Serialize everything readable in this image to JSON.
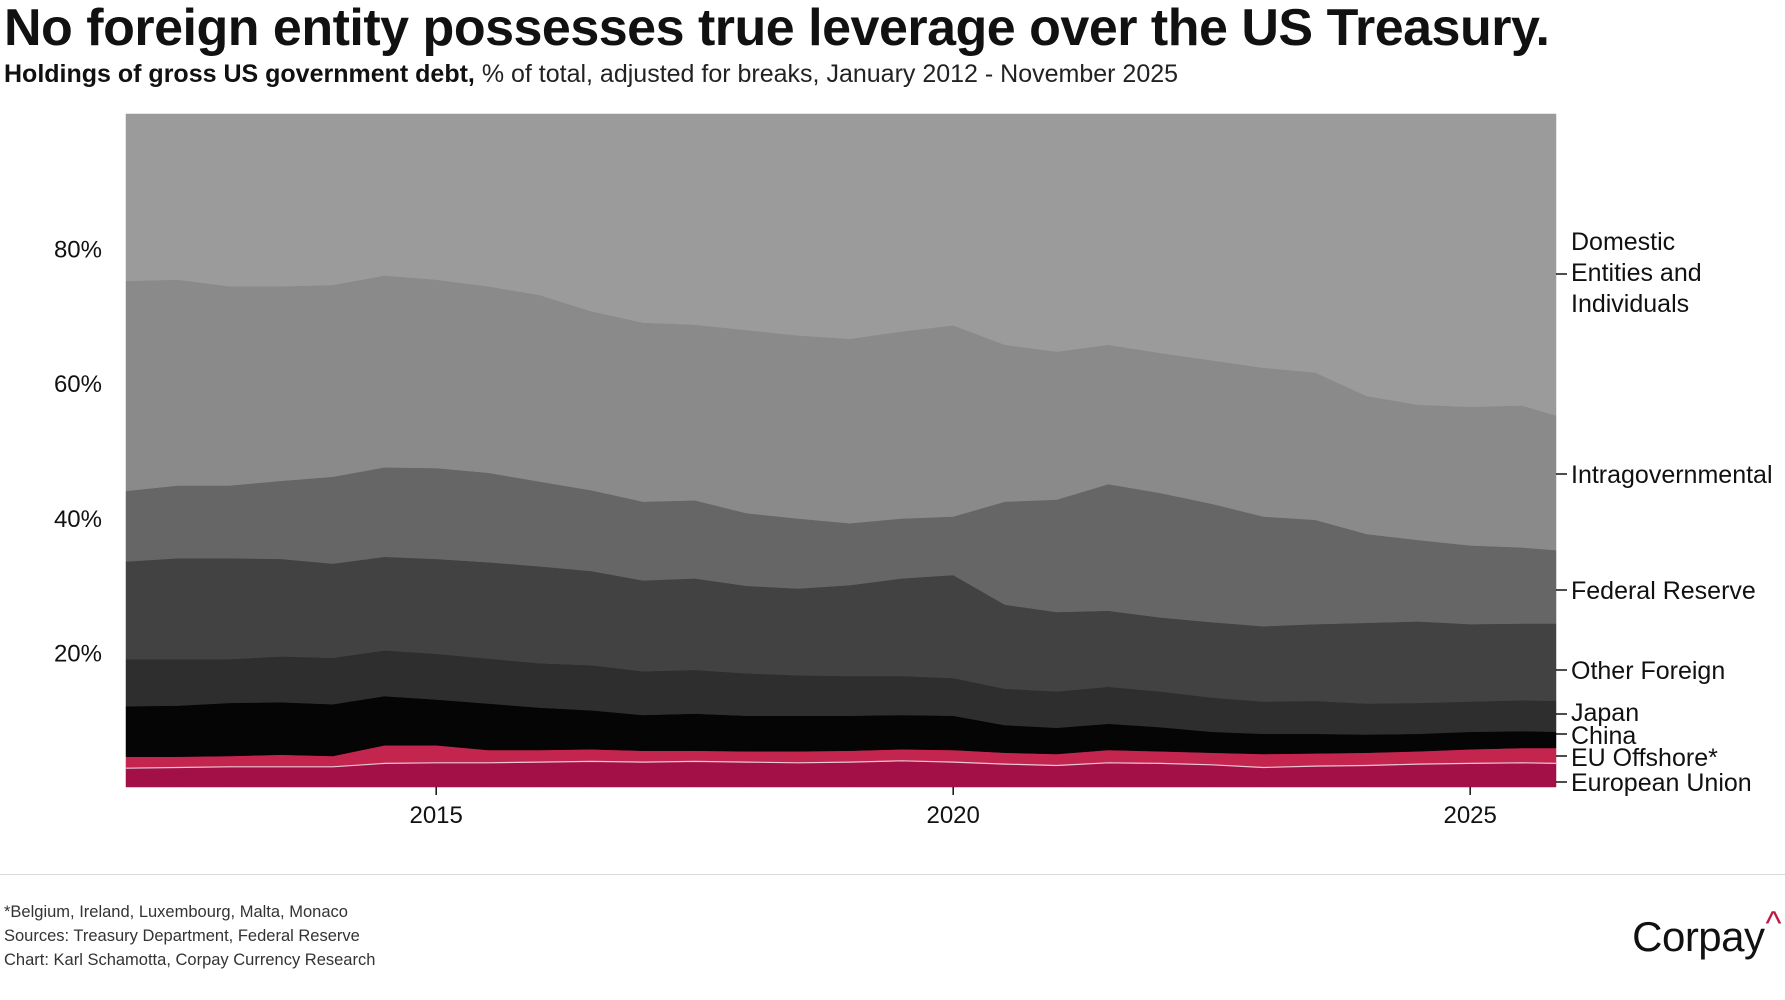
{
  "header": {
    "title": "No foreign entity possesses true leverage over the US Treasury.",
    "subtitle_bold": "Holdings of gross US government debt,",
    "subtitle_rest": " % of total, adjusted for breaks, January 2012 - November 2025"
  },
  "footer": {
    "note": "*Belgium, Ireland, Luxembourg, Malta, Monaco",
    "sources": "Sources: Treasury Department, Federal Reserve",
    "credit": "Chart: Karl Schamotta, Corpay Currency Research",
    "brand": "Corpay",
    "brand_mark": "^"
  },
  "colors": {
    "european_union": "#a30f47",
    "eu_offshore": "#c4254f",
    "china": "#050505",
    "japan": "#2e2e2e",
    "other_foreign": "#424242",
    "federal_reserve": "#666666",
    "intragovernmental": "#8a8a8a",
    "domestic": "#9b9b9b",
    "eu_divider": "#f0e6ea"
  },
  "chart_data": {
    "type": "area",
    "stacked": true,
    "title": "Holdings of gross US government debt",
    "xlabel": "",
    "ylabel": "% of total",
    "x": [
      2012.0,
      2012.5,
      2013.0,
      2013.5,
      2014.0,
      2014.5,
      2015.0,
      2015.5,
      2016.0,
      2016.5,
      2017.0,
      2017.5,
      2018.0,
      2018.5,
      2019.0,
      2019.5,
      2020.0,
      2020.5,
      2021.0,
      2021.5,
      2022.0,
      2022.5,
      2023.0,
      2023.5,
      2024.0,
      2024.5,
      2025.0,
      2025.5,
      2025.83
    ],
    "xlim": [
      2012.0,
      2025.83
    ],
    "ylim": [
      0,
      100
    ],
    "x_ticks": [
      2015,
      2020,
      2025
    ],
    "x_tick_labels": [
      "2015",
      "2020",
      "2025"
    ],
    "y_ticks": [
      20,
      40,
      60,
      80
    ],
    "y_tick_labels": [
      "20%",
      "40%",
      "60%",
      "80%"
    ],
    "series": [
      {
        "name": "European Union",
        "key": "european_union",
        "values": [
          2.8,
          2.9,
          3.0,
          3.0,
          3.0,
          3.5,
          3.6,
          3.6,
          3.7,
          3.8,
          3.7,
          3.8,
          3.7,
          3.6,
          3.7,
          3.9,
          3.7,
          3.4,
          3.2,
          3.6,
          3.5,
          3.3,
          2.9,
          3.1,
          3.2,
          3.4,
          3.5,
          3.6,
          3.5
        ]
      },
      {
        "name": "EU Offshore*",
        "key": "eu_offshore",
        "values": [
          1.7,
          1.6,
          1.6,
          1.8,
          1.6,
          2.7,
          2.6,
          1.9,
          1.8,
          1.8,
          1.7,
          1.6,
          1.6,
          1.7,
          1.7,
          1.7,
          1.8,
          1.7,
          1.7,
          1.9,
          1.8,
          1.8,
          2.0,
          1.9,
          1.9,
          1.9,
          2.1,
          2.2,
          2.3
        ]
      },
      {
        "name": "China",
        "key": "china",
        "values": [
          7.5,
          7.6,
          7.9,
          7.8,
          7.7,
          7.3,
          6.8,
          6.9,
          6.3,
          5.8,
          5.3,
          5.5,
          5.3,
          5.3,
          5.2,
          5.1,
          5.1,
          4.1,
          3.9,
          3.9,
          3.6,
          3.1,
          3.0,
          2.9,
          2.7,
          2.6,
          2.6,
          2.5,
          2.4
        ]
      },
      {
        "name": "Japan",
        "key": "japan",
        "values": [
          7.0,
          6.9,
          6.5,
          6.8,
          6.9,
          6.8,
          6.8,
          6.7,
          6.6,
          6.7,
          6.5,
          6.5,
          6.3,
          6.0,
          5.9,
          5.8,
          5.6,
          5.4,
          5.4,
          5.5,
          5.3,
          5.1,
          4.8,
          4.9,
          4.6,
          4.6,
          4.5,
          4.6,
          4.6
        ]
      },
      {
        "name": "Other Foreign",
        "key": "other_foreign",
        "values": [
          14.5,
          15.0,
          15.0,
          14.5,
          14.0,
          13.9,
          14.1,
          14.3,
          14.4,
          14.0,
          13.5,
          13.6,
          13.0,
          12.9,
          13.5,
          14.5,
          15.3,
          12.5,
          11.8,
          11.3,
          11.0,
          11.2,
          11.2,
          11.4,
          12.0,
          12.1,
          11.5,
          11.4,
          11.5
        ]
      },
      {
        "name": "Federal Reserve",
        "key": "federal_reserve",
        "values": [
          10.5,
          10.8,
          10.8,
          11.6,
          12.9,
          13.3,
          13.5,
          13.3,
          12.6,
          12.0,
          11.7,
          11.6,
          10.8,
          10.4,
          9.2,
          8.9,
          8.7,
          15.3,
          16.7,
          18.8,
          18.5,
          17.6,
          16.3,
          15.5,
          13.2,
          12.1,
          11.7,
          11.3,
          10.9
        ]
      },
      {
        "name": "Intragovernmental",
        "key": "intragovernmental",
        "values": [
          31.2,
          30.6,
          29.6,
          28.9,
          28.5,
          28.5,
          28.0,
          27.7,
          27.7,
          26.6,
          26.6,
          26.1,
          27.2,
          27.2,
          27.4,
          27.8,
          28.4,
          23.3,
          22.0,
          20.7,
          20.8,
          21.3,
          22.1,
          21.9,
          20.5,
          20.1,
          20.6,
          21.1,
          20.0
        ]
      },
      {
        "name": "Domestic Entities and Individuals",
        "key": "domestic",
        "values": [
          24.8,
          24.6,
          25.6,
          25.6,
          25.4,
          24.0,
          24.6,
          25.6,
          26.9,
          29.3,
          31.0,
          31.3,
          32.1,
          32.9,
          33.4,
          32.3,
          31.4,
          34.3,
          35.3,
          34.3,
          35.5,
          36.6,
          37.7,
          38.4,
          41.9,
          43.2,
          43.5,
          43.3,
          44.8
        ]
      }
    ],
    "label_lines": [
      [
        "Domestic",
        "Entities and",
        "Individuals"
      ],
      [
        "Intragovernmental"
      ],
      [
        "Federal Reserve"
      ],
      [
        "Other Foreign"
      ],
      [
        "Japan"
      ],
      [
        "China"
      ],
      [
        "EU Offshore*"
      ],
      [
        "European Union"
      ]
    ]
  }
}
